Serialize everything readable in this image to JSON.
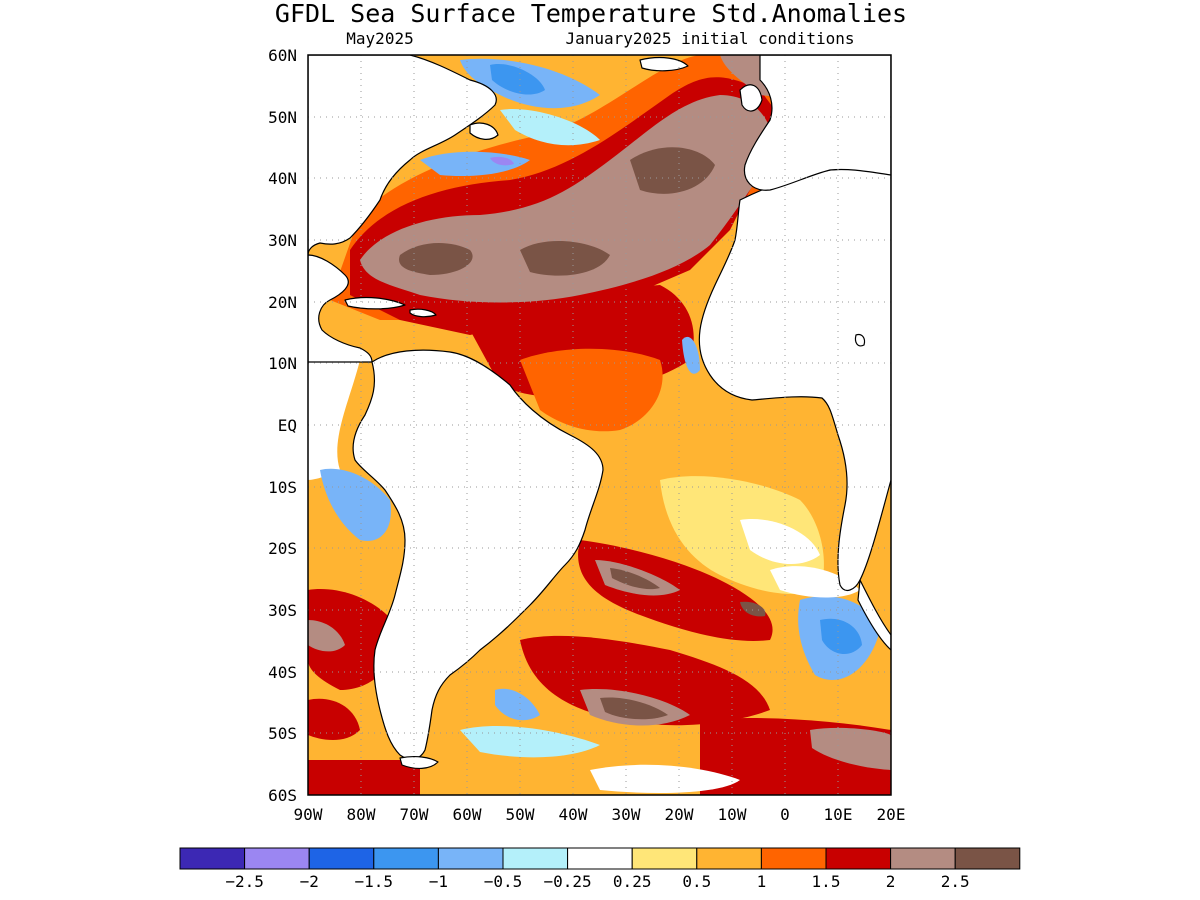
{
  "title": "GFDL Sea Surface Temperature Std.Anomalies",
  "subtitle_left": "May2025",
  "subtitle_right": "January2025 initial conditions",
  "lat_labels": [
    "60N",
    "50N",
    "40N",
    "30N",
    "20N",
    "10N",
    "EQ",
    "10S",
    "20S",
    "30S",
    "40S",
    "50S",
    "60S"
  ],
  "lon_labels": [
    "90W",
    "80W",
    "70W",
    "60W",
    "50W",
    "40W",
    "30W",
    "20W",
    "10W",
    "0",
    "10E",
    "20E"
  ],
  "colorbar": {
    "colors": [
      "#3c28b4",
      "#9b86f2",
      "#1e64e6",
      "#3c96f0",
      "#78b4f8",
      "#b4f0fa",
      "#ffffff",
      "#ffe678",
      "#ffb432",
      "#ff6400",
      "#c80000",
      "#b48c82",
      "#7a5446"
    ],
    "labels": [
      "−2.5",
      "−2",
      "−1.5",
      "−1",
      "−0.5",
      "−0.25",
      "0.25",
      "0.5",
      "1",
      "1.5",
      "2",
      "2.5"
    ]
  },
  "chart_data": {
    "type": "heatmap",
    "title": "GFDL Sea Surface Temperature Std.Anomalies",
    "xlim": [
      -90,
      20
    ],
    "ylim": [
      -60,
      60
    ],
    "levels": [
      -2.5,
      -2,
      -1.5,
      -1,
      -0.5,
      -0.25,
      0.25,
      0.5,
      1,
      1.5,
      2,
      2.5
    ],
    "grid": true,
    "legend": "bottom"
  }
}
